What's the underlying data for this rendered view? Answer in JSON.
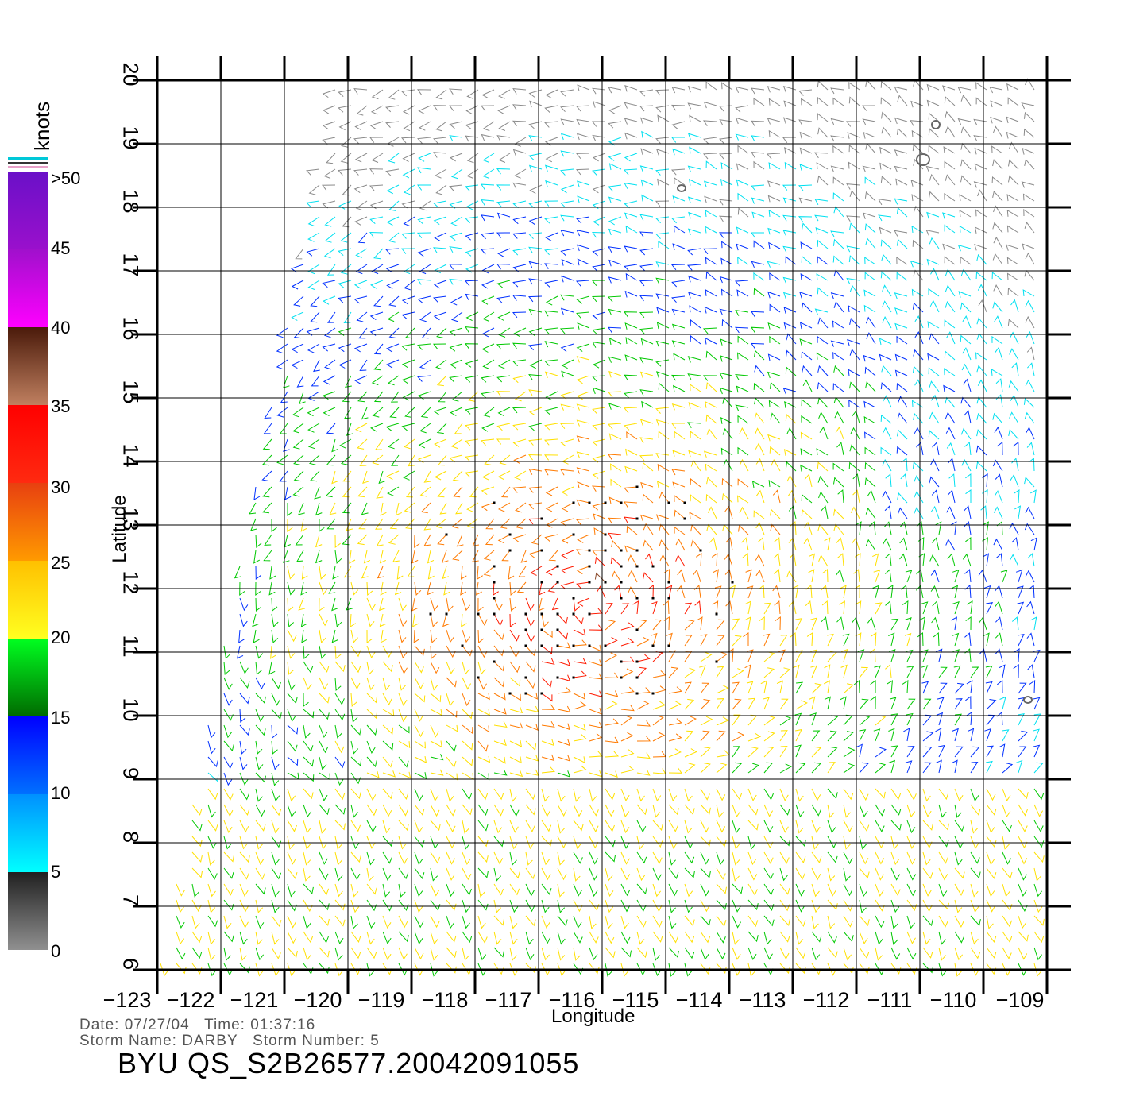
{
  "colorbar": {
    "units": "knots",
    "labels": [
      ">50",
      "45",
      "40",
      "35",
      "30",
      "25",
      "20",
      "15",
      "10",
      "5",
      "0"
    ],
    "colors": {
      "gray": "#8a8a8a",
      "cyan": "#00e0f0",
      "blue": "#0030ff",
      "green": "#00c800",
      "yellow": "#ffe000",
      "orange": "#ff7a00",
      "red": "#ff1a00",
      "brown": "#8b4a2a",
      "magenta": "#ff00ff",
      "purple": "#6a00cc"
    }
  },
  "axes": {
    "xlabel": "Longitude",
    "ylabel": "Latitude",
    "x_ticks": [
      "−123",
      "−122",
      "−121",
      "−120",
      "−119",
      "−118",
      "−117",
      "−116",
      "−115",
      "−114",
      "−113",
      "−112",
      "−111",
      "−110",
      "−109"
    ],
    "y_ticks": [
      "6",
      "7",
      "8",
      "9",
      "10",
      "11",
      "12",
      "13",
      "14",
      "15",
      "16",
      "17",
      "18",
      "19",
      "20"
    ],
    "lon_range": [
      -123,
      -109
    ],
    "lat_range": [
      6,
      20
    ]
  },
  "footer": {
    "line1": "Date: 07/27/04   Time: 01:37:16",
    "line2": "Storm Name: DARBY   Storm Number: 5",
    "id": "BYU QS_S2B26577.20042091055"
  },
  "storm": {
    "name": "DARBY",
    "center_lon": -116.2,
    "center_lat": 11.8
  }
}
